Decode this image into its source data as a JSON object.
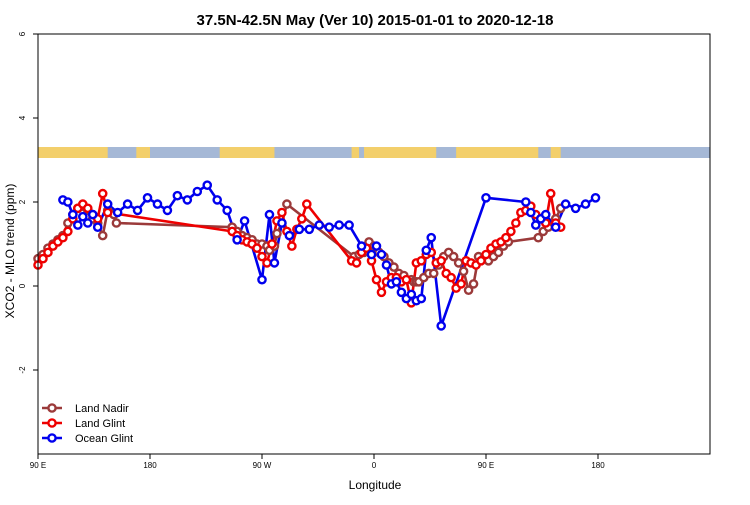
{
  "chart_data": {
    "type": "line",
    "title": "37.5N-42.5N May (Ver 10)   2015-01-01 to 2020-12-18",
    "xlabel": "Longitude",
    "ylabel": "XCO2 - MLO trend (ppm)",
    "xlim": [
      -90,
      180
    ],
    "ylim": [
      -4,
      6
    ],
    "x_ticks": [
      {
        "value": -90,
        "label": "90 E"
      },
      {
        "value": -45,
        "label": "180"
      },
      {
        "value": 0,
        "label": "90 W"
      },
      {
        "value": 45,
        "label": "0"
      },
      {
        "value": 90,
        "label": "90 E"
      },
      {
        "value": 135,
        "label": "180"
      }
    ],
    "y_ticks": [
      {
        "value": -2,
        "label": "-2"
      },
      {
        "value": 0,
        "label": "0"
      },
      {
        "value": 2,
        "label": "2"
      },
      {
        "value": 4,
        "label": "4"
      },
      {
        "value": 6,
        "label": "6"
      }
    ],
    "legend_position": "bottom-left",
    "map_strip": {
      "ocean_color": "#a5b8d6",
      "land_color": "#f3cf6b",
      "land_ranges": [
        [
          -90,
          -62
        ],
        [
          -50.5,
          -45
        ],
        [
          -17,
          5
        ],
        [
          36,
          39
        ],
        [
          41,
          70
        ],
        [
          78,
          111
        ],
        [
          116,
          120
        ]
      ]
    },
    "series": [
      {
        "name": "Land Nadir",
        "color": "#9b3a3a",
        "x": [
          -90,
          -88,
          -86,
          -84,
          -82,
          -80,
          -78,
          -76,
          -74,
          -72,
          -70,
          -68,
          -66,
          -64,
          -62,
          -59.5,
          -58.5,
          -12,
          -10,
          -8,
          -6,
          -4,
          -2,
          0,
          2,
          3,
          5,
          6,
          8,
          10,
          37,
          39,
          41,
          42,
          43,
          45,
          47,
          49,
          51,
          53,
          55,
          57,
          60,
          61,
          62,
          63,
          65,
          67,
          69,
          71,
          73,
          75,
          77,
          79,
          81,
          83,
          85,
          87,
          89,
          91,
          93,
          95,
          97,
          99,
          111,
          113,
          115,
          118,
          120
        ],
        "y": [
          0.65,
          0.75,
          0.9,
          1.0,
          1.1,
          1.2,
          1.5,
          1.7,
          1.85,
          1.9,
          1.8,
          1.6,
          1.5,
          1.2,
          1.8,
          1.7,
          1.5,
          1.4,
          1.3,
          1.2,
          1.15,
          1.1,
          1.0,
          1.0,
          0.95,
          0.85,
          0.95,
          1.25,
          1.5,
          1.95,
          0.7,
          0.75,
          0.8,
          0.95,
          1.05,
          0.95,
          0.8,
          0.7,
          0.55,
          0.45,
          0.3,
          0.25,
          0.15,
          0.1,
          0.1,
          0.1,
          0.2,
          0.3,
          0.3,
          0.5,
          0.7,
          0.8,
          0.7,
          0.55,
          0.35,
          -0.1,
          0.05,
          0.7,
          0.65,
          0.6,
          0.7,
          0.8,
          0.95,
          1.05,
          1.15,
          1.3,
          1.4,
          1.6,
          1.85
        ]
      },
      {
        "name": "Land Glint",
        "color": "#ee0000",
        "x": [
          -90,
          -88,
          -86,
          -84,
          -82,
          -80,
          -78,
          -76,
          -74,
          -72,
          -70,
          -68,
          -66,
          -64,
          -62,
          -12,
          -10,
          -8,
          -6,
          -4,
          -2,
          0,
          2,
          4,
          6,
          8,
          10,
          12,
          14,
          16,
          18,
          36,
          38,
          40,
          42,
          44,
          46,
          48,
          50,
          52,
          54,
          56,
          58,
          60,
          62,
          64,
          66,
          68,
          70,
          72,
          74,
          76,
          78,
          80,
          82,
          84,
          86,
          88,
          90,
          92,
          94,
          96,
          98,
          100,
          102,
          104,
          106,
          108,
          110,
          112,
          114,
          116,
          118,
          120
        ],
        "y": [
          0.5,
          0.65,
          0.8,
          0.95,
          1.05,
          1.15,
          1.3,
          1.6,
          1.85,
          1.95,
          1.85,
          1.7,
          1.6,
          2.2,
          1.75,
          1.3,
          1.2,
          1.1,
          1.05,
          1.0,
          0.9,
          0.7,
          0.55,
          1.0,
          1.55,
          1.75,
          1.3,
          0.95,
          1.35,
          1.6,
          1.95,
          0.6,
          0.55,
          0.8,
          0.9,
          0.6,
          0.15,
          -0.15,
          0.1,
          0.2,
          0.2,
          0.1,
          0.15,
          -0.4,
          0.55,
          0.6,
          0.75,
          0.8,
          0.55,
          0.6,
          0.3,
          0.2,
          -0.05,
          0.05,
          0.6,
          0.55,
          0.5,
          0.6,
          0.75,
          0.9,
          1.0,
          1.05,
          1.15,
          1.3,
          1.5,
          1.75,
          1.8,
          1.9,
          1.7,
          1.6,
          1.5,
          2.2,
          1.5,
          1.4
        ]
      },
      {
        "name": "Ocean Glint",
        "color": "#0000ee",
        "x": [
          -80,
          -78,
          -76,
          -74,
          -72,
          -70,
          -68,
          -66,
          -62,
          -58,
          -54,
          -50,
          -46,
          -42,
          -38,
          -34,
          -30,
          -26,
          -22,
          -18,
          -14,
          -10,
          -7,
          0,
          3,
          5,
          8,
          11,
          15,
          19,
          23,
          27,
          31,
          35,
          40,
          44,
          46,
          48,
          50,
          52,
          54,
          56,
          58,
          60,
          62,
          64,
          66,
          68,
          72,
          90,
          106,
          108,
          110,
          112,
          114,
          118,
          122,
          126,
          130,
          134
        ],
        "y": [
          2.05,
          2.0,
          1.7,
          1.45,
          1.65,
          1.5,
          1.7,
          1.4,
          1.95,
          1.75,
          1.95,
          1.8,
          2.1,
          1.95,
          1.8,
          2.15,
          2.05,
          2.25,
          2.4,
          2.05,
          1.8,
          1.1,
          1.55,
          0.15,
          1.7,
          0.55,
          1.5,
          1.2,
          1.35,
          1.35,
          1.45,
          1.4,
          1.45,
          1.45,
          0.95,
          0.75,
          0.95,
          0.75,
          0.5,
          0.05,
          0.1,
          -0.15,
          -0.3,
          -0.2,
          -0.35,
          -0.3,
          0.85,
          1.15,
          -0.95,
          2.1,
          2.0,
          1.75,
          1.45,
          1.6,
          1.7,
          1.4,
          1.95,
          1.85,
          1.95,
          2.1
        ]
      }
    ]
  }
}
